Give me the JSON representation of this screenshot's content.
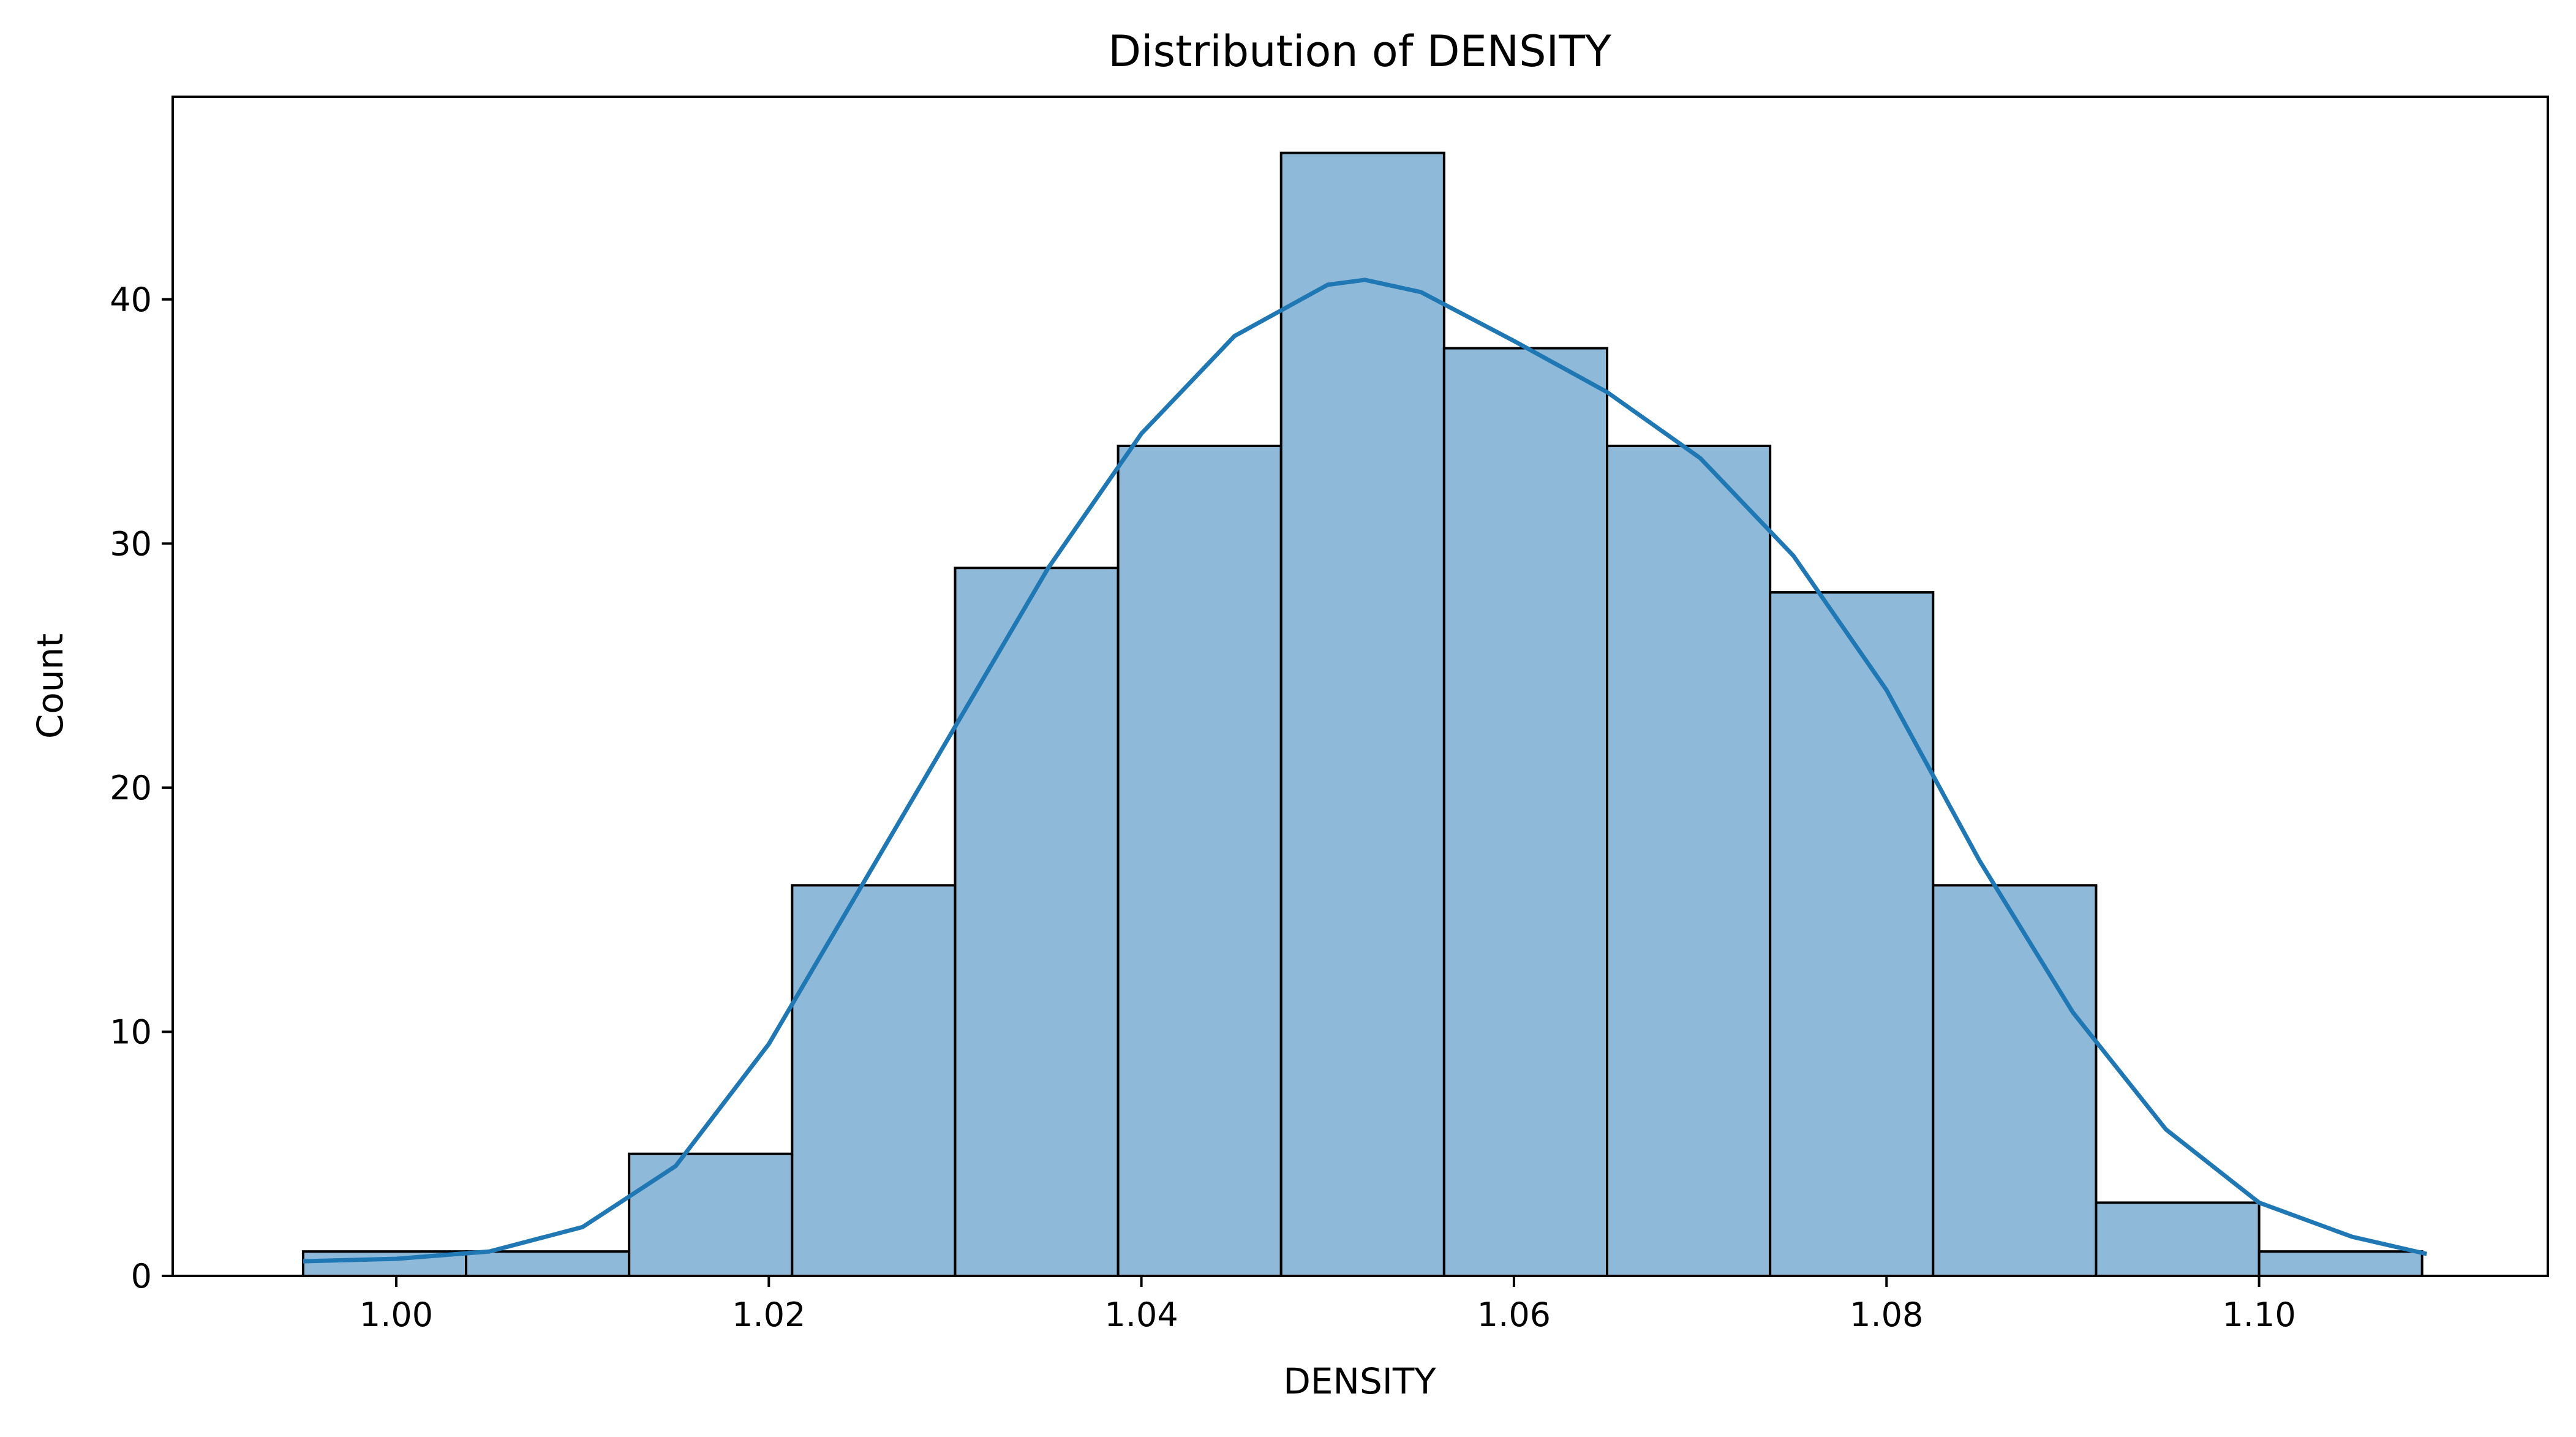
{
  "chart_data": {
    "type": "bar",
    "subtype": "histogram with kde line",
    "title": "Distribution of DENSITY",
    "xlabel": "DENSITY",
    "ylabel": "Count",
    "xlim": [
      0.988,
      1.1155
    ],
    "ylim": [
      0,
      48.3
    ],
    "grid": false,
    "x_ticks": [
      1.0,
      1.02,
      1.04,
      1.06,
      1.08,
      1.1
    ],
    "x_tick_labels": [
      "1.00",
      "1.02",
      "1.04",
      "1.06",
      "1.08",
      "1.10"
    ],
    "y_ticks": [
      0,
      10,
      20,
      30,
      40
    ],
    "y_tick_labels": [
      "0",
      "10",
      "20",
      "30",
      "40"
    ],
    "bin_edges": [
      0.995,
      1.00375,
      1.0125,
      1.02125,
      1.03,
      1.03875,
      1.0475,
      1.05625,
      1.065,
      1.07375,
      1.0825,
      1.09125,
      1.1,
      1.10875
    ],
    "counts": [
      1,
      1,
      5,
      16,
      29,
      34,
      46,
      38,
      34,
      28,
      16,
      3,
      1
    ],
    "kde": {
      "x": [
        0.995,
        1.0,
        1.005,
        1.01,
        1.015,
        1.02,
        1.025,
        1.03,
        1.035,
        1.04,
        1.045,
        1.05,
        1.052,
        1.055,
        1.06,
        1.065,
        1.07,
        1.075,
        1.08,
        1.085,
        1.09,
        1.095,
        1.1,
        1.105,
        1.109
      ],
      "y": [
        0.6,
        0.7,
        1.0,
        2.0,
        4.5,
        9.5,
        16.0,
        22.5,
        29.0,
        34.5,
        38.5,
        40.6,
        40.8,
        40.3,
        38.3,
        36.2,
        33.5,
        29.5,
        24.0,
        17.0,
        10.8,
        6.0,
        3.0,
        1.6,
        0.9
      ]
    },
    "colors": {
      "bar_fill": "#8fb9d9",
      "bar_edge": "#000000",
      "kde_line": "#1f77b4",
      "axes": "#000000",
      "background": "#ffffff"
    }
  }
}
